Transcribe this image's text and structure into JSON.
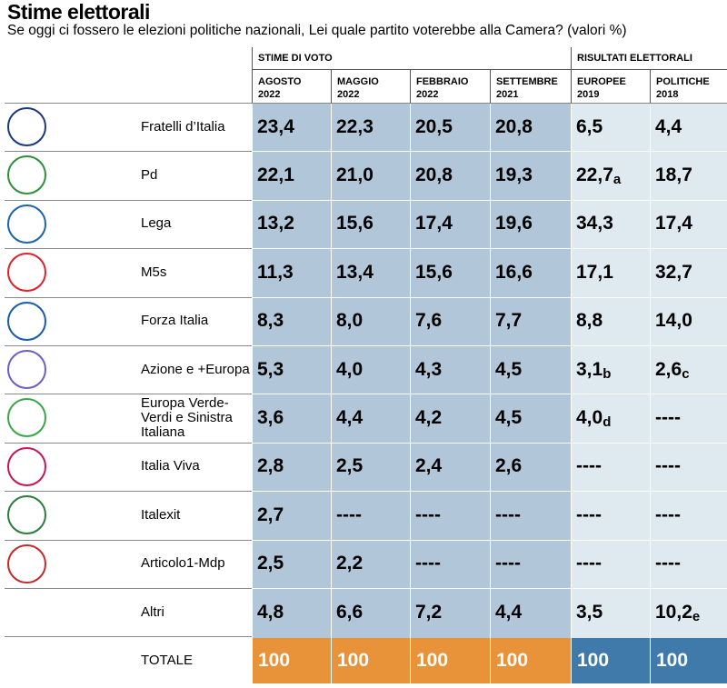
{
  "header": {
    "title": "Stime elettorali",
    "subtitle": "Se oggi ci fossero le elezioni politiche nazionali, Lei quale partito voterebbe alla Camera? (valori %)"
  },
  "table": {
    "groups": [
      {
        "label": "STIME DI VOTO",
        "span": 4
      },
      {
        "label": "RISULTATI ELETTORALI",
        "span": 2
      }
    ],
    "columns": [
      [
        "AGOSTO",
        "2022"
      ],
      [
        "MAGGIO",
        "2022"
      ],
      [
        "FEBBRAIO",
        "2022"
      ],
      [
        "SETTEMBRE",
        "2021"
      ],
      [
        "EUROPEE",
        "2019"
      ],
      [
        "POLITICHE",
        "2018"
      ]
    ],
    "rows": [
      {
        "party": "Fratelli d’Italia",
        "values": [
          "23,4",
          "22,3",
          "20,5",
          "20,8",
          "6,5",
          "4,4"
        ]
      },
      {
        "party": "Pd",
        "values": [
          "22,1",
          "21,0",
          "20,8",
          "19,3",
          {
            "value": "22,7",
            "note": "a"
          },
          "18,7"
        ]
      },
      {
        "party": "Lega",
        "values": [
          "13,2",
          "15,6",
          "17,4",
          "19,6",
          "34,3",
          "17,4"
        ]
      },
      {
        "party": "M5s",
        "values": [
          "11,3",
          "13,4",
          "15,6",
          "16,6",
          "17,1",
          "32,7"
        ]
      },
      {
        "party": "Forza Italia",
        "values": [
          "8,3",
          "8,0",
          "7,6",
          "7,7",
          "8,8",
          "14,0"
        ]
      },
      {
        "party": "Azione e +Europa",
        "values": [
          "5,3",
          "4,0",
          "4,3",
          "4,5",
          {
            "value": "3,1",
            "note": "b"
          },
          {
            "value": "2,6",
            "note": "c"
          }
        ]
      },
      {
        "party": "Europa Verde-Verdi e Sinistra Italiana",
        "values": [
          "3,6",
          "4,4",
          "4,2",
          "4,5",
          {
            "value": "4,0",
            "note": "d"
          },
          "----"
        ]
      },
      {
        "party": "Italia Viva",
        "values": [
          "2,8",
          "2,5",
          "2,4",
          "2,6",
          "----",
          "----"
        ]
      },
      {
        "party": "Italexit",
        "values": [
          "2,7",
          "----",
          "----",
          "----",
          "----",
          "----"
        ]
      },
      {
        "party": "Articolo1-Mdp",
        "values": [
          "2,5",
          "2,2",
          "----",
          "----",
          "----",
          "----"
        ]
      },
      {
        "party": "Altri",
        "values": [
          "4,8",
          "6,6",
          "7,2",
          "4,4",
          "3,5",
          {
            "value": "10,2",
            "note": "e"
          }
        ]
      }
    ],
    "total": {
      "label": "TOTALE",
      "values": [
        "100",
        "100",
        "100",
        "100",
        "100",
        "100"
      ]
    }
  }
}
